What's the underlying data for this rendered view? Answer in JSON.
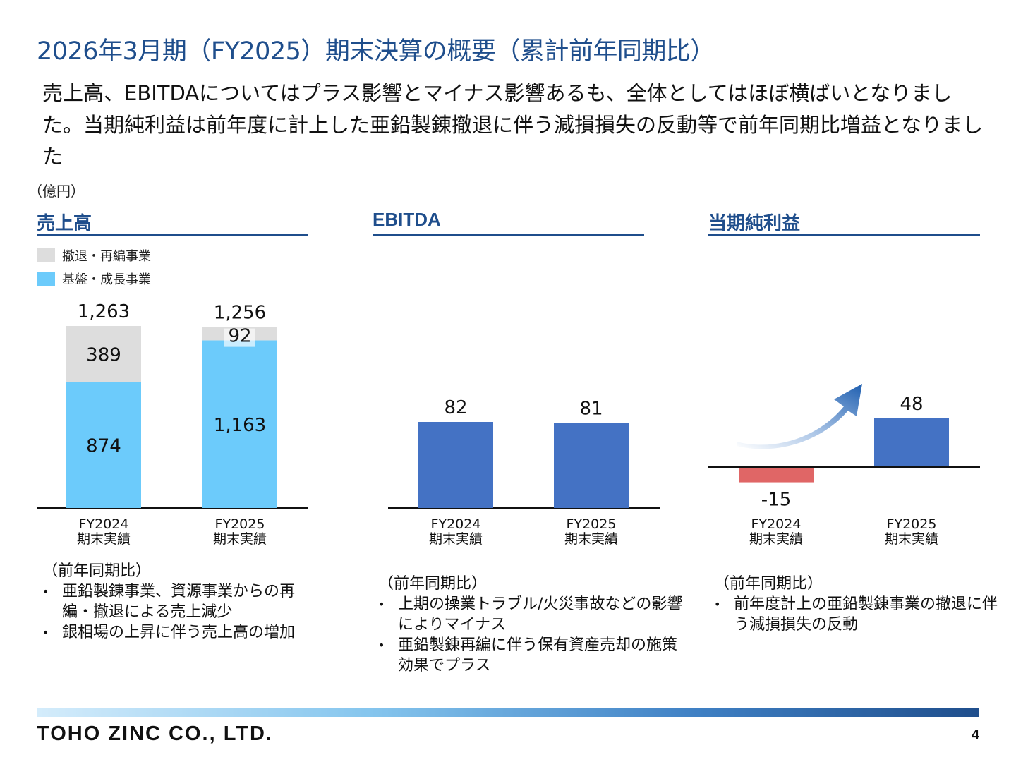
{
  "title": "2026年3月期（FY2025）期末決算の概要（累計前年同期比）",
  "summary": "売上高、EBITDAについてはプラス影響とマイナス影響あるも、全体としてはほぼ横ばいとなりました。当期純利益は前年度に計上した亜鉛製錬撤退に伴う減損損失の反動等で前年同期比増益となりました",
  "unit": "（億円）",
  "legend": {
    "withdrawal": "撤退・再編事業",
    "core": "基盤・成長事業"
  },
  "colors": {
    "title": "#1f4e8c",
    "withdrawal": "#dddddd",
    "core": "#6ccbfb",
    "ebitda_bar": "#4472c4",
    "net_positive": "#4472c4",
    "net_negative": "#e06666"
  },
  "chart_data": [
    {
      "type": "bar",
      "title": "売上高",
      "categories": [
        "FY2024\n期末実績",
        "FY2025\n期末実績"
      ],
      "stacked": true,
      "series": [
        {
          "name": "基盤・成長事業",
          "values": [
            874,
            1163
          ]
        },
        {
          "name": "撤退・再編事業",
          "values": [
            389,
            92
          ]
        }
      ],
      "totals": [
        "1,263",
        "1,256"
      ],
      "value_labels": {
        "core": [
          "874",
          "1,163"
        ],
        "withdrawal": [
          "389",
          "92"
        ]
      },
      "ylim": [
        0,
        1263
      ],
      "legend": "top-left"
    },
    {
      "type": "bar",
      "title": "EBITDA",
      "categories": [
        "FY2024\n期末実績",
        "FY2025\n期末実績"
      ],
      "values": [
        82,
        81
      ],
      "value_labels": [
        "82",
        "81"
      ],
      "ylim": [
        0,
        82
      ]
    },
    {
      "type": "bar",
      "title": "当期純利益",
      "categories": [
        "FY2024\n期末実績",
        "FY2025\n期末実績"
      ],
      "values": [
        -15,
        48
      ],
      "value_labels": [
        "-15",
        "48"
      ],
      "ylim": [
        -15,
        48
      ]
    }
  ],
  "notes": [
    {
      "lead": "（前年同期比）",
      "items": [
        "亜鉛製錬事業、資源事業からの再編・撤退による売上減少",
        "銀相場の上昇に伴う売上高の増加"
      ]
    },
    {
      "lead": "（前年同期比）",
      "items": [
        "上期の操業トラブル/火災事故などの影響によりマイナス",
        "亜鉛製錬再編に伴う保有資産売却の施策効果でプラス"
      ]
    },
    {
      "lead": "（前年同期比）",
      "items": [
        "前年度計上の亜鉛製錬事業の撤退に伴う減損損失の反動"
      ]
    }
  ],
  "footer": {
    "company": "TOHO ZINC CO., LTD.",
    "page": "4"
  }
}
